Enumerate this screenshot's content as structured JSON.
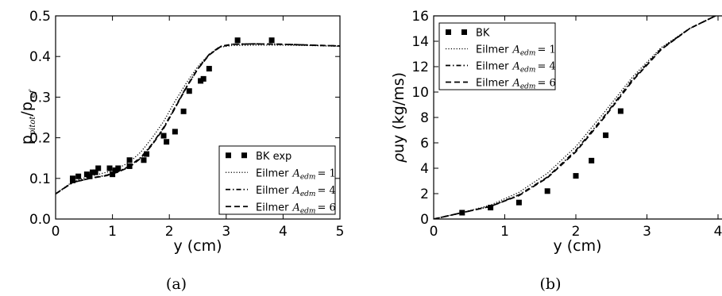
{
  "chart_data": [
    {
      "type": "line",
      "caption": "(a)",
      "xlabel": "y (cm)",
      "ylabel": {
        "base": "p",
        "sub1": "pitot",
        "sep": "/p",
        "sub2": "ref"
      },
      "xlim": [
        0,
        5
      ],
      "ylim": [
        0.0,
        0.5
      ],
      "xticks": [
        "0",
        "1",
        "2",
        "3",
        "4",
        "5"
      ],
      "yticks": [
        "0.0",
        "0.1",
        "0.2",
        "0.3",
        "0.4",
        "0.5"
      ],
      "grid": false,
      "legend_position": "lower-right",
      "series": [
        {
          "name": "BK exp",
          "kind": "markers",
          "x": [
            0.3,
            0.3,
            0.4,
            0.55,
            0.6,
            0.65,
            0.7,
            0.75,
            0.95,
            1.0,
            1.05,
            1.1,
            1.3,
            1.3,
            1.55,
            1.6,
            1.9,
            1.95,
            2.1,
            2.25,
            2.35,
            2.55,
            2.6,
            2.7,
            3.2,
            3.8
          ],
          "y": [
            0.095,
            0.1,
            0.105,
            0.11,
            0.105,
            0.115,
            0.115,
            0.125,
            0.125,
            0.11,
            0.12,
            0.125,
            0.145,
            0.13,
            0.145,
            0.16,
            0.205,
            0.19,
            0.215,
            0.265,
            0.315,
            0.34,
            0.345,
            0.37,
            0.44,
            0.44
          ]
        },
        {
          "name": "Eilmer",
          "param": "A",
          "param_sub": "edm",
          "param_value": "= 1",
          "kind": "dotted",
          "x": [
            0,
            0.3,
            0.6,
            0.9,
            1.1,
            1.3,
            1.5,
            1.7,
            1.9,
            2.1,
            2.3,
            2.5,
            2.7,
            2.9,
            3.1,
            3.5,
            4.0,
            4.5,
            5.0
          ],
          "y": [
            0.062,
            0.092,
            0.105,
            0.115,
            0.125,
            0.14,
            0.165,
            0.2,
            0.24,
            0.29,
            0.335,
            0.375,
            0.405,
            0.423,
            0.427,
            0.428,
            0.428,
            0.427,
            0.425
          ]
        },
        {
          "name": "Eilmer",
          "param": "A",
          "param_sub": "edm",
          "param_value": "= 4",
          "kind": "dashdot",
          "x": [
            0,
            0.3,
            0.6,
            0.9,
            1.1,
            1.3,
            1.5,
            1.7,
            1.9,
            2.1,
            2.3,
            2.5,
            2.7,
            2.9,
            3.1,
            3.5,
            4.0,
            4.5,
            5.0
          ],
          "y": [
            0.062,
            0.09,
            0.1,
            0.108,
            0.117,
            0.13,
            0.152,
            0.185,
            0.225,
            0.275,
            0.325,
            0.37,
            0.405,
            0.425,
            0.43,
            0.431,
            0.43,
            0.428,
            0.426
          ]
        },
        {
          "name": "Eilmer",
          "param": "A",
          "param_sub": "edm",
          "param_value": "= 6",
          "kind": "dashed",
          "x": [
            0,
            0.3,
            0.6,
            0.9,
            1.1,
            1.3,
            1.5,
            1.7,
            1.9,
            2.1,
            2.3,
            2.5,
            2.7,
            2.9,
            3.1,
            3.5,
            4.0,
            4.5,
            5.0
          ],
          "y": [
            0.062,
            0.09,
            0.1,
            0.107,
            0.116,
            0.128,
            0.15,
            0.183,
            0.223,
            0.273,
            0.324,
            0.369,
            0.404,
            0.424,
            0.43,
            0.431,
            0.43,
            0.428,
            0.426
          ]
        }
      ]
    },
    {
      "type": "line",
      "caption": "(b)",
      "xlabel": "y (cm)",
      "ylabel": {
        "rho": "ρ",
        "rest": "uy (kg/ms)"
      },
      "xlim": [
        0,
        4
      ],
      "ylim": [
        0,
        16
      ],
      "xticks": [
        "0",
        "1",
        "2",
        "3",
        "4"
      ],
      "yticks": [
        "0",
        "2",
        "4",
        "6",
        "8",
        "10",
        "12",
        "14",
        "16"
      ],
      "grid": false,
      "legend_position": "upper-left",
      "series": [
        {
          "name": "BK",
          "kind": "markers",
          "x": [
            0.4,
            0.8,
            1.2,
            1.6,
            2.0,
            2.22,
            2.42,
            2.63
          ],
          "y": [
            0.5,
            0.9,
            1.3,
            2.2,
            3.4,
            4.6,
            6.6,
            8.5
          ]
        },
        {
          "name": "Eilmer",
          "param": "A",
          "param_sub": "edm",
          "param_value": "= 1",
          "kind": "dotted",
          "x": [
            0,
            0.4,
            0.8,
            1.2,
            1.6,
            2.0,
            2.4,
            2.8,
            3.2,
            3.6,
            4.0
          ],
          "y": [
            0,
            0.5,
            1.1,
            2.1,
            3.6,
            5.7,
            8.4,
            11.2,
            13.5,
            15.0,
            16.1
          ]
        },
        {
          "name": "Eilmer",
          "param": "A",
          "param_sub": "edm",
          "param_value": "= 4",
          "kind": "dashdot",
          "x": [
            0,
            0.4,
            0.8,
            1.2,
            1.6,
            2.0,
            2.4,
            2.8,
            3.2,
            3.6,
            4.0
          ],
          "y": [
            0,
            0.5,
            1.0,
            1.9,
            3.3,
            5.4,
            8.1,
            11.0,
            13.4,
            15.0,
            16.1
          ]
        },
        {
          "name": "Eilmer",
          "param": "A",
          "param_sub": "edm",
          "param_value": "= 6",
          "kind": "dashed",
          "x": [
            0,
            0.4,
            0.8,
            1.2,
            1.6,
            2.0,
            2.4,
            2.8,
            3.2,
            3.6,
            4.0
          ],
          "y": [
            0,
            0.5,
            1.0,
            1.85,
            3.25,
            5.3,
            8.0,
            10.9,
            13.35,
            15.0,
            16.1
          ]
        }
      ]
    }
  ]
}
